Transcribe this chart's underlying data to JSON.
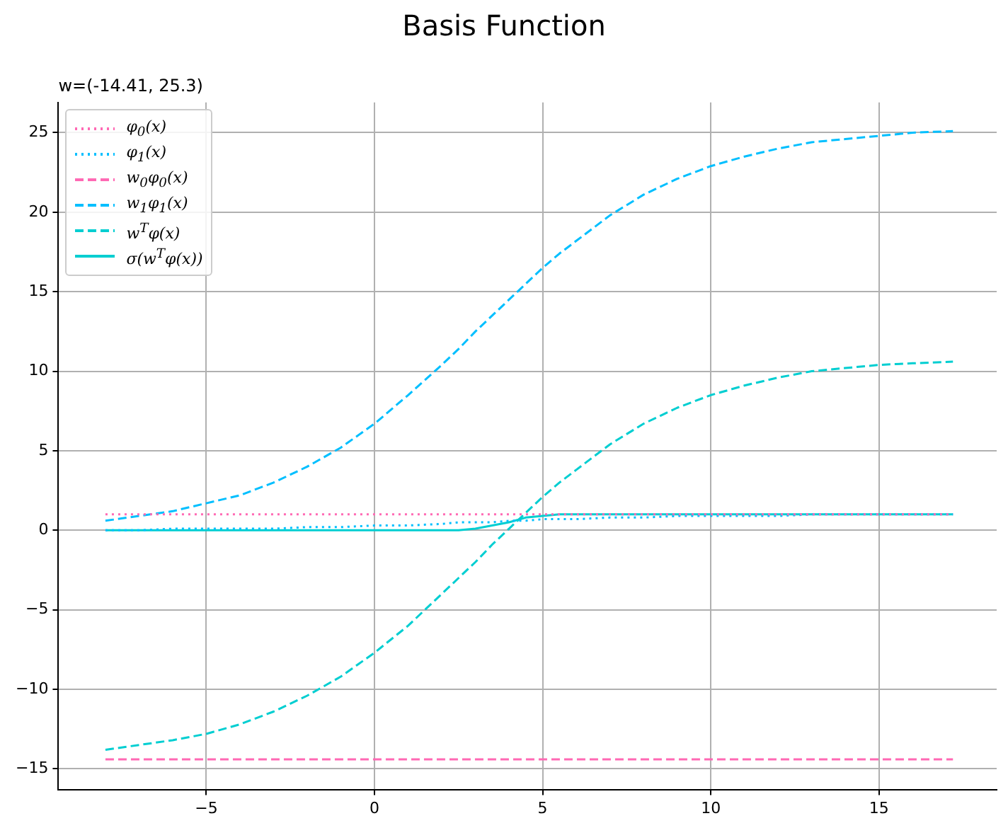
{
  "chart_data": {
    "type": "line",
    "title": "Basis Function",
    "subtitle": "w=(-14.41, 25.3)",
    "x": [
      -8,
      -7,
      -6,
      -5,
      -4,
      -3,
      -2,
      -1,
      0,
      1,
      2,
      2.5,
      3,
      3.5,
      4,
      4.5,
      5,
      5.5,
      6,
      7,
      8,
      9,
      10,
      11,
      12,
      13,
      14,
      15,
      16,
      17.2
    ],
    "series": [
      {
        "name": "φ$_{0}$(x)",
        "color": "#ff69b4",
        "line_style": "dotted",
        "values": [
          1,
          1,
          1,
          1,
          1,
          1,
          1,
          1,
          1,
          1,
          1,
          1,
          1,
          1,
          1,
          1,
          1,
          1,
          1,
          1,
          1,
          1,
          1,
          1,
          1,
          1,
          1,
          1,
          1,
          1
        ]
      },
      {
        "name": "φ$_{1}$(x)",
        "color": "#00bfff",
        "line_style": "dotted",
        "values": [
          0,
          0,
          0.1,
          0.1,
          0.1,
          0.1,
          0.2,
          0.2,
          0.3,
          0.3,
          0.4,
          0.5,
          0.5,
          0.5,
          0.6,
          0.6,
          0.7,
          0.7,
          0.7,
          0.8,
          0.8,
          0.9,
          0.9,
          0.9,
          0.9,
          1,
          1,
          1,
          1,
          1
        ]
      },
      {
        "name": "w$_{0}$φ$_{0}$(x)",
        "color": "#ff69b4",
        "line_style": "dashed",
        "values": [
          -14.4,
          -14.4,
          -14.4,
          -14.4,
          -14.4,
          -14.4,
          -14.4,
          -14.4,
          -14.4,
          -14.4,
          -14.4,
          -14.4,
          -14.4,
          -14.4,
          -14.4,
          -14.4,
          -14.4,
          -14.4,
          -14.4,
          -14.4,
          -14.4,
          -14.4,
          -14.4,
          -14.4,
          -14.4,
          -14.4,
          -14.4,
          -14.4,
          -14.4,
          -14.4
        ]
      },
      {
        "name": "w$_{1}$φ$_{1}$(x)",
        "color": "#00bfff",
        "line_style": "dashed",
        "values": [
          0.6,
          0.9,
          1.2,
          1.7,
          2.2,
          3.0,
          4.0,
          5.2,
          6.7,
          8.5,
          10.4,
          11.4,
          12.5,
          13.5,
          14.5,
          15.5,
          16.5,
          17.4,
          18.2,
          19.8,
          21.1,
          22.1,
          22.9,
          23.5,
          24.0,
          24.4,
          24.6,
          24.8,
          25.0,
          25.1
        ]
      },
      {
        "name": "w$^{T}$φ(x)",
        "color": "#00ced1",
        "line_style": "dashed",
        "values": [
          -13.8,
          -13.5,
          -13.2,
          -12.8,
          -12.2,
          -11.4,
          -10.4,
          -9.2,
          -7.7,
          -6.0,
          -4.0,
          -3.0,
          -2.0,
          -0.9,
          0.1,
          1.1,
          2.1,
          3.0,
          3.8,
          5.4,
          6.7,
          7.7,
          8.5,
          9.1,
          9.6,
          10.0,
          10.2,
          10.4,
          10.5,
          10.6
        ]
      },
      {
        "name": "σ(w$^{T}$φ(x))",
        "color": "#00ced1",
        "line_style": "solid",
        "values": [
          0,
          0,
          0,
          0,
          0,
          0,
          0,
          0,
          0,
          0,
          0,
          0,
          0.1,
          0.3,
          0.5,
          0.8,
          0.9,
          1,
          1,
          1,
          1,
          1,
          1,
          1,
          1,
          1,
          1,
          1,
          1,
          1
        ]
      }
    ],
    "xlim": [
      -9.4,
      18.5
    ],
    "xticks": [
      -5,
      0,
      5,
      10,
      15
    ],
    "ylim": [
      -16.3,
      26.9
    ],
    "yticks": [
      -15,
      -10,
      -5,
      0,
      5,
      10,
      15,
      20,
      25
    ],
    "grid": true,
    "legend": "top left",
    "marker": "none"
  }
}
